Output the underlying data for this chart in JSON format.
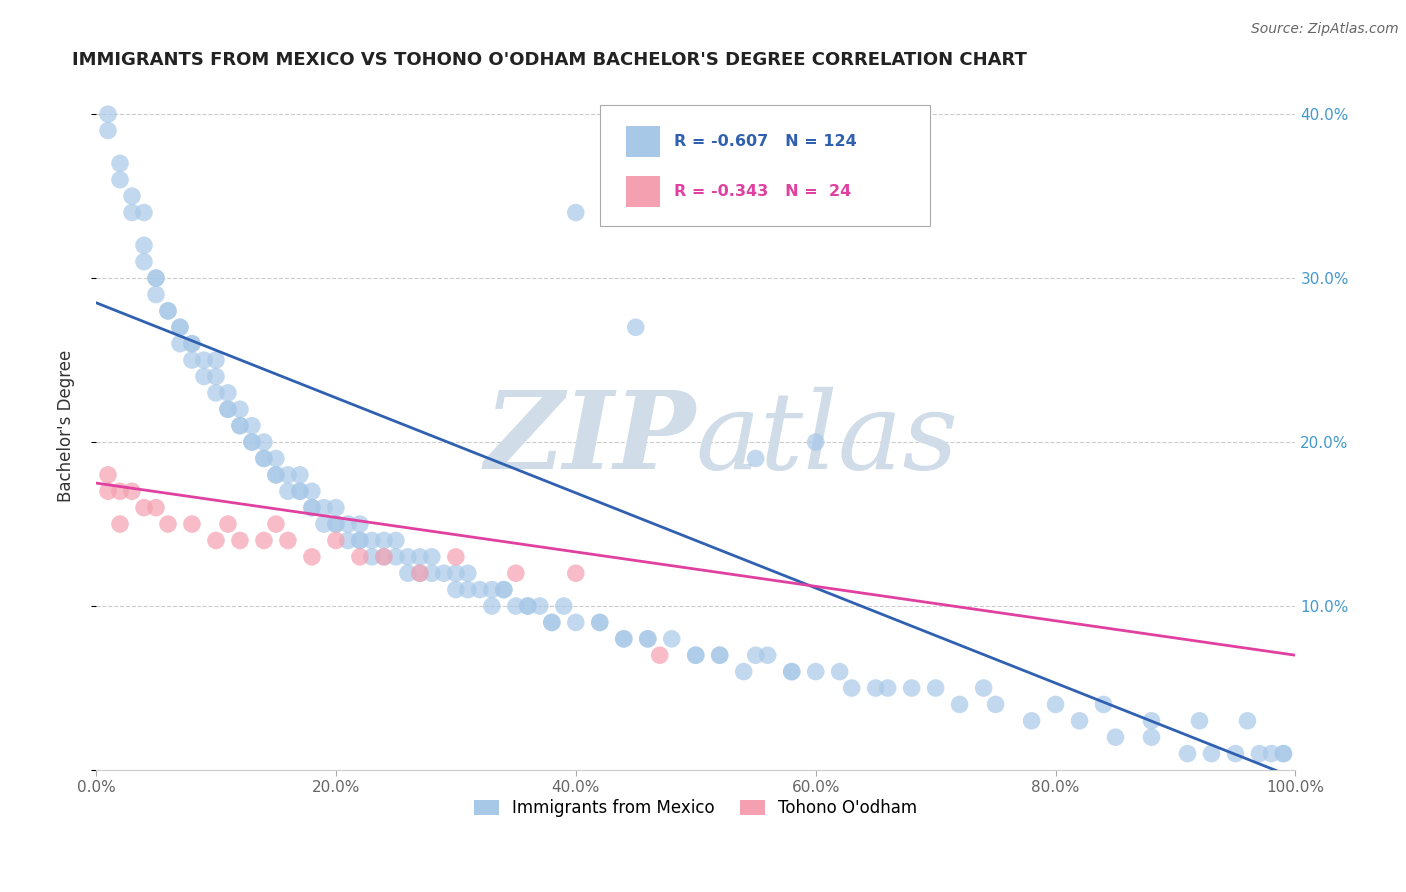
{
  "title": "IMMIGRANTS FROM MEXICO VS TOHONO O'ODHAM BACHELOR'S DEGREE CORRELATION CHART",
  "source": "Source: ZipAtlas.com",
  "ylabel": "Bachelor's Degree",
  "blue_R": "-0.607",
  "blue_N": "124",
  "pink_R": "-0.343",
  "pink_N": "24",
  "blue_color": "#a8c8e8",
  "pink_color": "#f4a0b0",
  "blue_line_color": "#3060b0",
  "pink_line_color": "#e040a0",
  "watermark_color": "#d0dce8",
  "background_color": "#ffffff",
  "legend_blue_label": "Immigrants from Mexico",
  "legend_pink_label": "Tohono O'odham",
  "blue_line_x0": 0.0,
  "blue_line_y0": 0.285,
  "blue_line_x1": 1.0,
  "blue_line_y1": -0.005,
  "pink_line_x0": 0.0,
  "pink_line_y0": 0.175,
  "pink_line_x1": 1.0,
  "pink_line_y1": 0.07,
  "xlim": [
    0.0,
    1.0
  ],
  "ylim": [
    0.0,
    0.42
  ],
  "blue_x": [
    0.01,
    0.01,
    0.02,
    0.02,
    0.03,
    0.03,
    0.04,
    0.04,
    0.04,
    0.05,
    0.05,
    0.05,
    0.06,
    0.06,
    0.07,
    0.07,
    0.07,
    0.08,
    0.08,
    0.08,
    0.09,
    0.09,
    0.1,
    0.1,
    0.1,
    0.11,
    0.11,
    0.11,
    0.12,
    0.12,
    0.12,
    0.13,
    0.13,
    0.13,
    0.14,
    0.14,
    0.14,
    0.15,
    0.15,
    0.15,
    0.16,
    0.16,
    0.17,
    0.17,
    0.17,
    0.18,
    0.18,
    0.18,
    0.19,
    0.19,
    0.2,
    0.2,
    0.2,
    0.21,
    0.21,
    0.22,
    0.22,
    0.22,
    0.23,
    0.23,
    0.24,
    0.24,
    0.25,
    0.25,
    0.26,
    0.26,
    0.27,
    0.27,
    0.28,
    0.28,
    0.29,
    0.3,
    0.3,
    0.31,
    0.31,
    0.32,
    0.33,
    0.33,
    0.34,
    0.35,
    0.36,
    0.37,
    0.38,
    0.39,
    0.4,
    0.42,
    0.44,
    0.46,
    0.48,
    0.5,
    0.52,
    0.55,
    0.58,
    0.6,
    0.63,
    0.65,
    0.68,
    0.72,
    0.75,
    0.78,
    0.82,
    0.85,
    0.88,
    0.91,
    0.93,
    0.95,
    0.97,
    0.98,
    0.99,
    0.99,
    0.34,
    0.36,
    0.38,
    0.42,
    0.44,
    0.46,
    0.5,
    0.52,
    0.54,
    0.56,
    0.58,
    0.62,
    0.66,
    0.7,
    0.74,
    0.8,
    0.84,
    0.88,
    0.92,
    0.96,
    0.4,
    0.45,
    0.55,
    0.6
  ],
  "blue_y": [
    0.4,
    0.39,
    0.37,
    0.36,
    0.35,
    0.34,
    0.34,
    0.32,
    0.31,
    0.3,
    0.3,
    0.29,
    0.28,
    0.28,
    0.27,
    0.27,
    0.26,
    0.26,
    0.25,
    0.26,
    0.25,
    0.24,
    0.25,
    0.24,
    0.23,
    0.23,
    0.22,
    0.22,
    0.22,
    0.21,
    0.21,
    0.21,
    0.2,
    0.2,
    0.2,
    0.19,
    0.19,
    0.19,
    0.18,
    0.18,
    0.18,
    0.17,
    0.18,
    0.17,
    0.17,
    0.17,
    0.16,
    0.16,
    0.16,
    0.15,
    0.16,
    0.15,
    0.15,
    0.15,
    0.14,
    0.15,
    0.14,
    0.14,
    0.14,
    0.13,
    0.14,
    0.13,
    0.14,
    0.13,
    0.13,
    0.12,
    0.13,
    0.12,
    0.13,
    0.12,
    0.12,
    0.12,
    0.11,
    0.12,
    0.11,
    0.11,
    0.11,
    0.1,
    0.11,
    0.1,
    0.1,
    0.1,
    0.09,
    0.1,
    0.09,
    0.09,
    0.08,
    0.08,
    0.08,
    0.07,
    0.07,
    0.07,
    0.06,
    0.06,
    0.05,
    0.05,
    0.05,
    0.04,
    0.04,
    0.03,
    0.03,
    0.02,
    0.02,
    0.01,
    0.01,
    0.01,
    0.01,
    0.01,
    0.01,
    0.01,
    0.11,
    0.1,
    0.09,
    0.09,
    0.08,
    0.08,
    0.07,
    0.07,
    0.06,
    0.07,
    0.06,
    0.06,
    0.05,
    0.05,
    0.05,
    0.04,
    0.04,
    0.03,
    0.03,
    0.03,
    0.34,
    0.27,
    0.19,
    0.2
  ],
  "pink_x": [
    0.01,
    0.01,
    0.02,
    0.02,
    0.03,
    0.04,
    0.05,
    0.06,
    0.08,
    0.1,
    0.11,
    0.12,
    0.14,
    0.15,
    0.16,
    0.18,
    0.2,
    0.22,
    0.24,
    0.27,
    0.3,
    0.35,
    0.4,
    0.47
  ],
  "pink_y": [
    0.18,
    0.17,
    0.17,
    0.15,
    0.17,
    0.16,
    0.16,
    0.15,
    0.15,
    0.14,
    0.15,
    0.14,
    0.14,
    0.15,
    0.14,
    0.13,
    0.14,
    0.13,
    0.13,
    0.12,
    0.13,
    0.12,
    0.12,
    0.07
  ]
}
